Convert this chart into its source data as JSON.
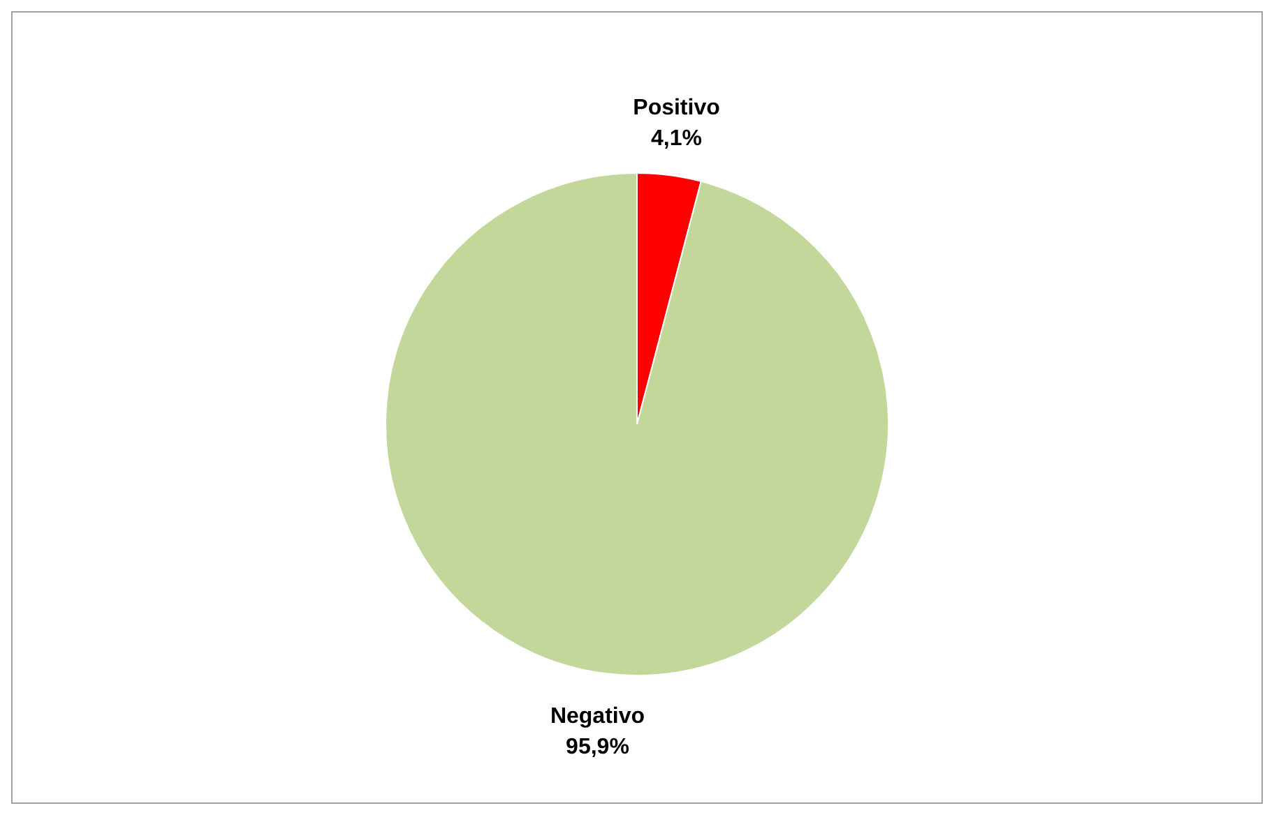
{
  "chart_data": {
    "type": "pie",
    "categories": [
      "Positivo",
      "Negativo"
    ],
    "values": [
      4.1,
      95.9
    ],
    "colors": [
      "#ff0000",
      "#c4d79b"
    ],
    "value_labels": [
      "4,1%",
      "95,9%"
    ]
  }
}
